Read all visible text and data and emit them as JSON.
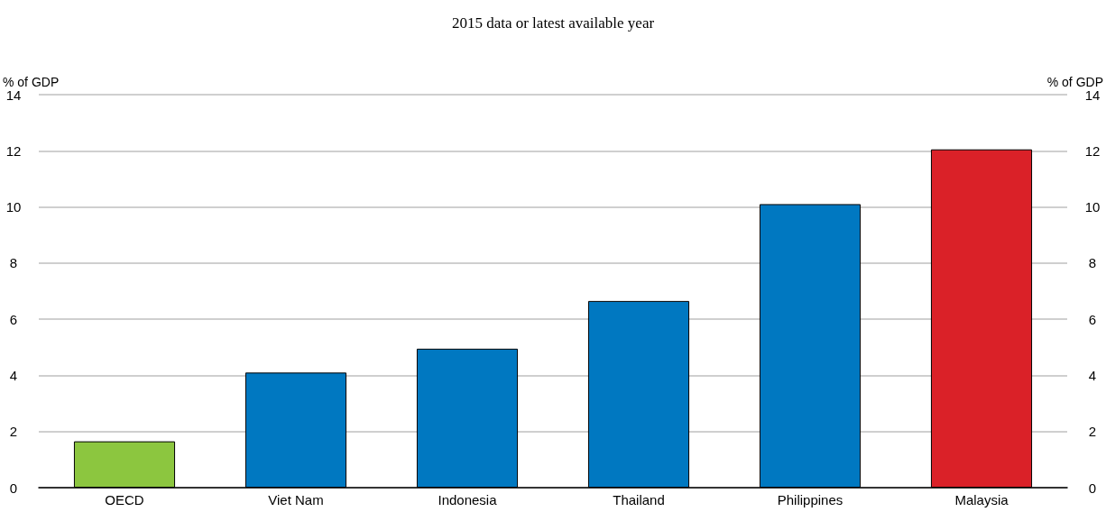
{
  "chart_data": {
    "type": "bar",
    "title": "2015 data or latest available year",
    "categories": [
      "OECD",
      "Viet Nam",
      "Indonesia",
      "Thailand",
      "Philippines",
      "Malaysia"
    ],
    "values": [
      1.65,
      4.1,
      4.95,
      6.65,
      10.1,
      12.05
    ],
    "colors": [
      "#8cc63f",
      "#0078c1",
      "#0078c1",
      "#0078c1",
      "#0078c1",
      "#da2128"
    ],
    "ylabel": "% of GDP",
    "y2label": "% of GDP",
    "ylim": [
      0,
      14
    ],
    "yticks": [
      0,
      2,
      4,
      6,
      8,
      10,
      12,
      14
    ],
    "y2lim": [
      0,
      14
    ],
    "y2ticks": [
      0,
      2,
      4,
      6,
      8,
      10,
      12,
      14
    ],
    "grid": "y"
  }
}
